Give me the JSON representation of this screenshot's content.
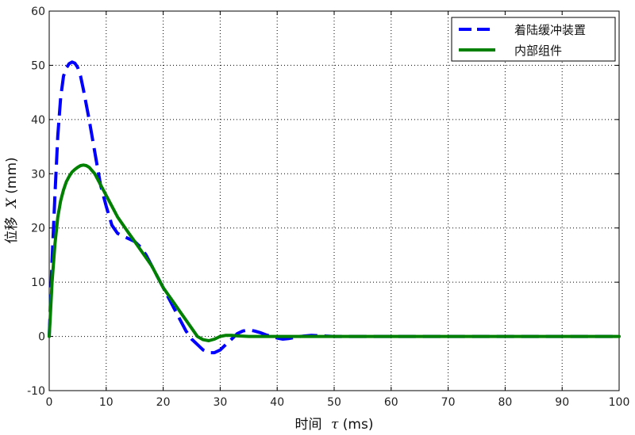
{
  "chart_data": {
    "type": "line",
    "xlabel_cn": "时间",
    "xlabel_sym": "τ",
    "xlabel_unit": "(ms)",
    "ylabel_cn": "位移",
    "ylabel_sym": "X",
    "ylabel_unit": "(mm)",
    "xlim": [
      0,
      100
    ],
    "ylim": [
      -10,
      60
    ],
    "xticks": [
      0,
      10,
      20,
      30,
      40,
      50,
      60,
      70,
      80,
      90,
      100
    ],
    "yticks": [
      -10,
      0,
      10,
      20,
      30,
      40,
      50,
      60
    ],
    "grid": true,
    "legend_position": "top-right",
    "series": [
      {
        "name": "着陆缓冲装置",
        "color": "#0000ff",
        "style": "dashed",
        "x": [
          0,
          0.5,
          1,
          1.5,
          2,
          2.5,
          3,
          3.5,
          4,
          4.5,
          5,
          5.5,
          6,
          7,
          8,
          9,
          10,
          11,
          12,
          13,
          14,
          15,
          16,
          17,
          18,
          19,
          20,
          21,
          22,
          23,
          24,
          25,
          26,
          27,
          28,
          29,
          30,
          31,
          32,
          33,
          34,
          35,
          36,
          37,
          38,
          39,
          40,
          41,
          42,
          44,
          46,
          48,
          50,
          55,
          60,
          70,
          80,
          90,
          100
        ],
        "y": [
          0,
          14,
          26,
          37,
          44,
          48,
          49.5,
          50.3,
          50.6,
          50.4,
          49.6,
          48,
          45.5,
          40,
          34,
          28,
          24,
          20.5,
          19,
          18.5,
          18,
          17.5,
          16.5,
          15,
          13,
          11,
          9,
          7,
          5,
          3,
          1,
          -0.5,
          -1.5,
          -2.5,
          -3,
          -3,
          -2.5,
          -1.5,
          -0.5,
          0.5,
          1,
          1.2,
          1,
          0.7,
          0.3,
          0,
          -0.3,
          -0.5,
          -0.4,
          0,
          0.2,
          0.1,
          0,
          0,
          0,
          0,
          0,
          0,
          0
        ]
      },
      {
        "name": "内部组件",
        "color": "#008000",
        "style": "solid",
        "x": [
          0,
          0.5,
          1,
          1.5,
          2,
          2.5,
          3,
          3.5,
          4,
          4.5,
          5,
          5.5,
          6,
          6.5,
          7,
          8,
          9,
          10,
          11,
          12,
          13,
          14,
          15,
          16,
          17,
          18,
          19,
          20,
          21,
          22,
          23,
          24,
          25,
          26,
          27,
          28,
          29,
          30,
          31,
          32,
          33,
          35,
          40,
          45,
          50,
          60,
          70,
          80,
          90,
          100
        ],
        "y": [
          0,
          10,
          17,
          22,
          25,
          27,
          28.5,
          29.5,
          30.3,
          30.8,
          31.2,
          31.5,
          31.6,
          31.5,
          31.2,
          30,
          28,
          26,
          24,
          22,
          20.5,
          19,
          17.5,
          16,
          14.5,
          13,
          11,
          9,
          7.5,
          6,
          4.5,
          3,
          1.5,
          0,
          -0.6,
          -0.8,
          -0.5,
          0,
          0.2,
          0.2,
          0.1,
          0,
          0,
          0,
          0,
          0,
          0,
          0,
          0,
          0
        ]
      }
    ]
  }
}
